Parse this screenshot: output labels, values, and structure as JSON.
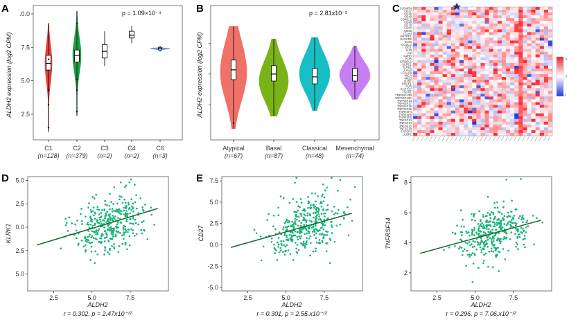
{
  "panels": {
    "A": {
      "label": "A"
    },
    "B": {
      "label": "B"
    },
    "C": {
      "label": "C"
    },
    "D": {
      "label": "D"
    },
    "E": {
      "label": "E"
    },
    "F": {
      "label": "F"
    }
  },
  "chart_data": [
    {
      "id": "A",
      "type": "violin",
      "ylabel": "ALDH2 expression (log2 CPM)",
      "ylim": [
        1.2,
        10.0
      ],
      "yticks": [
        2.5,
        5.0,
        7.5,
        10.0
      ],
      "ytick_labels": [
        "2.5",
        "5.0",
        "7.5",
        ".0.0"
      ],
      "pvalue_text": "p = 1.09×10⁻⁴",
      "categories": [
        {
          "name": "C1",
          "n": "(n=128)",
          "color": "#e8332a",
          "median": 6.3,
          "q1": 5.8,
          "q3": 6.9,
          "min": 1.2,
          "max": 9.3
        },
        {
          "name": "C2",
          "n": "(n=379)",
          "color": "#169b3a",
          "median": 6.9,
          "q1": 6.4,
          "q3": 7.3,
          "min": 2.4,
          "max": 10.2
        },
        {
          "name": "C3",
          "n": "(n=2)",
          "color": "#ffffff",
          "median": 7.2,
          "q1": 6.7,
          "q3": 7.7,
          "min": 6.1,
          "max": 8.7
        },
        {
          "name": "C4",
          "n": "(n=2)",
          "color": "#ffffff",
          "median": 8.4,
          "q1": 8.2,
          "q3": 8.7,
          "min": 7.8,
          "max": 9.1
        },
        {
          "name": "C6",
          "n": "(n=3)",
          "color": "#5b8ff0",
          "median": 7.4,
          "q1": 7.3,
          "q3": 7.5,
          "min": 7.2,
          "max": 7.6
        }
      ]
    },
    {
      "id": "B",
      "type": "violin",
      "ylabel": "ALDH2 expression (log2 CPM)",
      "pvalue_text": "p = 2.81x10⁻²",
      "categories": [
        {
          "name": "Atypical",
          "n": "(n=67)",
          "color": "#f07167",
          "median": 6.7,
          "q1": 6.0,
          "q3": 7.4,
          "min": 2.5,
          "max": 9.8
        },
        {
          "name": "Basal",
          "n": "(n=87)",
          "color": "#7ab317",
          "median": 6.4,
          "q1": 5.9,
          "q3": 7.0,
          "min": 3.4,
          "max": 8.9
        },
        {
          "name": "Classical",
          "n": "(n=48)",
          "color": "#17bfc4",
          "median": 6.2,
          "q1": 5.7,
          "q3": 6.8,
          "min": 3.8,
          "max": 9.0
        },
        {
          "name": "Mesenchymal",
          "n": "(n=74)",
          "color": "#c77ef0",
          "median": 6.3,
          "q1": 5.9,
          "q3": 6.8,
          "min": 4.6,
          "max": 8.4
        }
      ]
    },
    {
      "id": "C",
      "type": "heatmap",
      "row_labels": [
        "C10orf54",
        "CD27",
        "CD28",
        "CD40",
        "CD40LG",
        "CD48",
        "CD70",
        "CD80",
        "CD86",
        "CTLA4",
        "ENTPD1",
        "HAVCR2",
        "ICOS",
        "ICOSLG",
        "IDO1",
        "IL10",
        "IL2",
        "IL2RA",
        "KDR",
        "KIR2DL1",
        "KLRC1",
        "KLRK1",
        "LAG3",
        "LGALS9",
        "MICA",
        "MICB",
        "NT5E",
        "PDCD1",
        "PVR",
        "RAET1E",
        "TGFB1",
        "TNFRSF13B",
        "TNFRSF13C",
        "TNFRSF14",
        "TNFRSF17",
        "TNFRSF18",
        "TNFRSF25",
        "TNFRSF4",
        "TNFRSF8",
        "TNFRSF9",
        "TNFSF13",
        "TNFSF14",
        "TNFSF15",
        "TNFSF18",
        "TNFSF4",
        "ULBP1"
      ],
      "n_cols": 33,
      "legend": {
        "max_label": "1",
        "mid_label": "0",
        "min_label": "-1",
        "colors": [
          "#ffffff",
          "#e5262e",
          "#2436e0"
        ]
      }
    },
    {
      "id": "D",
      "type": "scatter",
      "xlabel": "ALDH2",
      "ylabel": "KLRK1",
      "xticks": [
        "2.5",
        "5.0",
        "7.5"
      ],
      "yticks": [
        "5.0",
        "2.5",
        "0.0",
        "2.5",
        "5.0"
      ],
      "stat_text": "r = 0.302, p = 2.47x10⁻¹²",
      "xlim": [
        0.8,
        10.0
      ],
      "ylim": [
        -6.8,
        5.4
      ],
      "fit": {
        "x0": 1.4,
        "y0": -1.9,
        "x1": 9.3,
        "y1": 2.0
      },
      "n_points": 380,
      "point_color": "#1db37a",
      "line_color": "#1d6e2e"
    },
    {
      "id": "E",
      "type": "scatter",
      "xlabel": "ALDH2",
      "ylabel": "CD27",
      "xticks": [
        "2.5",
        "5.0",
        "7.5"
      ],
      "yticks": [
        "7.5",
        "5.0",
        "2.5",
        "0.0",
        "-2.5",
        "-5.0"
      ],
      "stat_text": "r = 0.301, p = 2.55.x10⁻¹²",
      "xlim": [
        0.8,
        10.0
      ],
      "ylim": [
        -5.4,
        8.0
      ],
      "fit": {
        "x0": 1.4,
        "y0": -0.3,
        "x1": 9.3,
        "y1": 3.7
      },
      "n_points": 380,
      "point_color": "#1db37a",
      "line_color": "#1d6e2e"
    },
    {
      "id": "F",
      "type": "scatter",
      "xlabel": "ALDH2",
      "ylabel": "TNFRSF14",
      "xticks": [
        "2.5",
        "5.0",
        "7.5"
      ],
      "yticks": [
        "8",
        "6",
        "4",
        "2"
      ],
      "stat_text": "r = 0.296, p = 7.06.x10⁻¹²",
      "xlim": [
        0.8,
        10.0
      ],
      "ylim": [
        0.8,
        8.4
      ],
      "fit": {
        "x0": 1.4,
        "y0": 3.3,
        "x1": 9.3,
        "y1": 5.5
      },
      "n_points": 380,
      "point_color": "#1db37a",
      "line_color": "#1d6e2e"
    }
  ]
}
